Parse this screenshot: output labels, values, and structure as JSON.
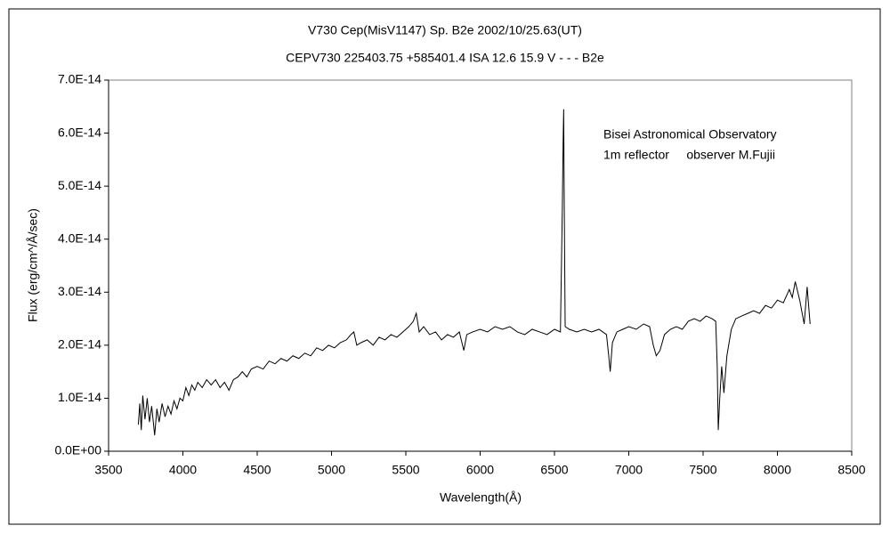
{
  "chart_data": {
    "type": "line",
    "title": "V730 Cep(MisV1147)    Sp. B2e    2002/10/25.63(UT)",
    "subtitle": "CEPV730 225403.75 +585401.4 ISA 12.6 15.9 V - - - B2e",
    "x_label": "Wavelength(Å)",
    "y_label": "Flux (erg/cm^/Å/sec)",
    "annotations": [
      "Bisei Astronomical Observatory",
      "1m reflector     observer M.Fujii"
    ],
    "xlim": [
      3500,
      8500
    ],
    "xticks": [
      3500,
      4000,
      4500,
      5000,
      5500,
      6000,
      6500,
      7000,
      7500,
      8000,
      8500
    ],
    "ylim": [
      0,
      7e-14
    ],
    "yticks": [
      {
        "value": 0,
        "label": "0.0E+00"
      },
      {
        "value": 1e-14,
        "label": "1.0E-14"
      },
      {
        "value": 2e-14,
        "label": "2.0E-14"
      },
      {
        "value": 3e-14,
        "label": "3.0E-14"
      },
      {
        "value": 4e-14,
        "label": "4.0E-14"
      },
      {
        "value": 5e-14,
        "label": "5.0E-14"
      },
      {
        "value": 6e-14,
        "label": "6.0E-14"
      },
      {
        "value": 7e-14,
        "label": "7.0E-14"
      }
    ],
    "grid": false,
    "color": "#000000",
    "x": [
      3700,
      3710,
      3720,
      3730,
      3745,
      3760,
      3775,
      3790,
      3810,
      3825,
      3840,
      3860,
      3880,
      3900,
      3920,
      3940,
      3960,
      3980,
      4000,
      4020,
      4040,
      4060,
      4080,
      4100,
      4130,
      4160,
      4190,
      4220,
      4250,
      4280,
      4310,
      4340,
      4370,
      4400,
      4430,
      4460,
      4500,
      4540,
      4580,
      4620,
      4660,
      4700,
      4740,
      4780,
      4820,
      4860,
      4900,
      4940,
      4980,
      5020,
      5060,
      5100,
      5130,
      5150,
      5170,
      5200,
      5240,
      5280,
      5320,
      5360,
      5400,
      5440,
      5480,
      5520,
      5550,
      5570,
      5590,
      5620,
      5660,
      5700,
      5740,
      5780,
      5820,
      5860,
      5890,
      5910,
      5950,
      6000,
      6050,
      6100,
      6150,
      6200,
      6250,
      6300,
      6350,
      6400,
      6450,
      6500,
      6540,
      6553,
      6558,
      6562,
      6566,
      6572,
      6600,
      6650,
      6700,
      6750,
      6800,
      6850,
      6865,
      6875,
      6890,
      6920,
      6960,
      7000,
      7050,
      7100,
      7140,
      7165,
      7185,
      7210,
      7240,
      7280,
      7320,
      7360,
      7400,
      7440,
      7480,
      7520,
      7560,
      7585,
      7595,
      7602,
      7612,
      7625,
      7640,
      7660,
      7690,
      7720,
      7760,
      7800,
      7840,
      7880,
      7920,
      7960,
      8000,
      8040,
      8080,
      8100,
      8120,
      8150,
      8180,
      8200,
      8220
    ],
    "values": [
      5e-15,
      9e-15,
      4e-15,
      1.05e-14,
      6e-15,
      1e-14,
      5.5e-15,
      8.5e-15,
      3e-15,
      8e-15,
      5.5e-15,
      9e-15,
      6.5e-15,
      8.5e-15,
      7e-15,
      9.5e-15,
      8e-15,
      1e-14,
      9.5e-15,
      1.2e-14,
      1.05e-14,
      1.25e-14,
      1.15e-14,
      1.3e-14,
      1.2e-14,
      1.35e-14,
      1.25e-14,
      1.35e-14,
      1.2e-14,
      1.3e-14,
      1.15e-14,
      1.35e-14,
      1.4e-14,
      1.5e-14,
      1.4e-14,
      1.55e-14,
      1.6e-14,
      1.55e-14,
      1.7e-14,
      1.65e-14,
      1.75e-14,
      1.7e-14,
      1.8e-14,
      1.75e-14,
      1.85e-14,
      1.8e-14,
      1.95e-14,
      1.9e-14,
      2e-14,
      1.95e-14,
      2.05e-14,
      2.1e-14,
      2.2e-14,
      2.25e-14,
      2e-14,
      2.05e-14,
      2.1e-14,
      2e-14,
      2.15e-14,
      2.1e-14,
      2.2e-14,
      2.15e-14,
      2.25e-14,
      2.35e-14,
      2.45e-14,
      2.6e-14,
      2.25e-14,
      2.35e-14,
      2.2e-14,
      2.25e-14,
      2.1e-14,
      2.2e-14,
      2.15e-14,
      2.25e-14,
      1.9e-14,
      2.2e-14,
      2.25e-14,
      2.3e-14,
      2.25e-14,
      2.35e-14,
      2.3e-14,
      2.35e-14,
      2.25e-14,
      2.2e-14,
      2.3e-14,
      2.25e-14,
      2.2e-14,
      2.3e-14,
      2.25e-14,
      4.6e-14,
      5.8e-14,
      6.45e-14,
      4.6e-14,
      2.35e-14,
      2.3e-14,
      2.25e-14,
      2.3e-14,
      2.25e-14,
      2.3e-14,
      2.2e-14,
      1.8e-14,
      1.5e-14,
      2.05e-14,
      2.25e-14,
      2.3e-14,
      2.35e-14,
      2.3e-14,
      2.4e-14,
      2.35e-14,
      2e-14,
      1.8e-14,
      1.9e-14,
      2.2e-14,
      2.3e-14,
      2.35e-14,
      2.3e-14,
      2.45e-14,
      2.5e-14,
      2.45e-14,
      2.55e-14,
      2.5e-14,
      2.45e-14,
      1.6e-14,
      4e-15,
      1e-14,
      1.6e-14,
      1.1e-14,
      1.8e-14,
      2.3e-14,
      2.5e-14,
      2.55e-14,
      2.6e-14,
      2.65e-14,
      2.6e-14,
      2.75e-14,
      2.7e-14,
      2.85e-14,
      2.8e-14,
      3.05e-14,
      2.9e-14,
      3.2e-14,
      2.85e-14,
      2.4e-14,
      3.1e-14,
      2.4e-14
    ]
  }
}
